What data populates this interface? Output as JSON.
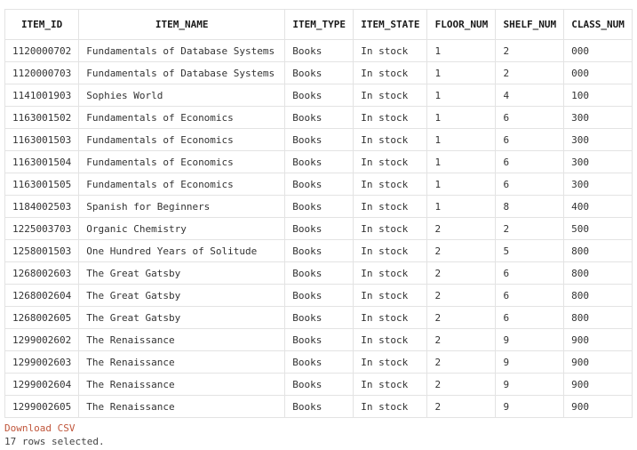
{
  "results": {
    "columns": [
      "ITEM_ID",
      "ITEM_NAME",
      "ITEM_TYPE",
      "ITEM_STATE",
      "FLOOR_NUM",
      "SHELF_NUM",
      "CLASS_NUM"
    ],
    "rows": [
      [
        "1120000702",
        "Fundamentals of Database Systems",
        "Books",
        "In stock",
        "1",
        "2",
        "000"
      ],
      [
        "1120000703",
        "Fundamentals of Database Systems",
        "Books",
        "In stock",
        "1",
        "2",
        "000"
      ],
      [
        "1141001903",
        "Sophies World",
        "Books",
        "In stock",
        "1",
        "4",
        "100"
      ],
      [
        "1163001502",
        "Fundamentals of Economics",
        "Books",
        "In stock",
        "1",
        "6",
        "300"
      ],
      [
        "1163001503",
        "Fundamentals of Economics",
        "Books",
        "In stock",
        "1",
        "6",
        "300"
      ],
      [
        "1163001504",
        "Fundamentals of Economics",
        "Books",
        "In stock",
        "1",
        "6",
        "300"
      ],
      [
        "1163001505",
        "Fundamentals of Economics",
        "Books",
        "In stock",
        "1",
        "6",
        "300"
      ],
      [
        "1184002503",
        "Spanish for Beginners",
        "Books",
        "In stock",
        "1",
        "8",
        "400"
      ],
      [
        "1225003703",
        "Organic Chemistry",
        "Books",
        "In stock",
        "2",
        "2",
        "500"
      ],
      [
        "1258001503",
        "One Hundred Years of Solitude",
        "Books",
        "In stock",
        "2",
        "5",
        "800"
      ],
      [
        "1268002603",
        "The Great Gatsby",
        "Books",
        "In stock",
        "2",
        "6",
        "800"
      ],
      [
        "1268002604",
        "The Great Gatsby",
        "Books",
        "In stock",
        "2",
        "6",
        "800"
      ],
      [
        "1268002605",
        "The Great Gatsby",
        "Books",
        "In stock",
        "2",
        "6",
        "800"
      ],
      [
        "1299002602",
        "The Renaissance",
        "Books",
        "In stock",
        "2",
        "9",
        "900"
      ],
      [
        "1299002603",
        "The Renaissance",
        "Books",
        "In stock",
        "2",
        "9",
        "900"
      ],
      [
        "1299002604",
        "The Renaissance",
        "Books",
        "In stock",
        "2",
        "9",
        "900"
      ],
      [
        "1299002605",
        "The Renaissance",
        "Books",
        "In stock",
        "2",
        "9",
        "900"
      ]
    ]
  },
  "footer": {
    "download_label": "Download CSV",
    "rows_selected": "17 rows selected."
  }
}
